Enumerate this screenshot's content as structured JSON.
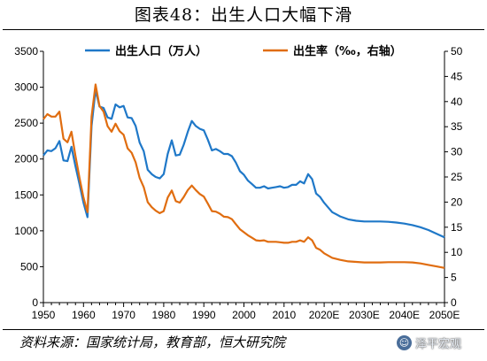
{
  "figure": {
    "title": "图表48：出生人口大幅下滑",
    "source": "资料来源：国家统计局，教育部，恒大研究院",
    "watermark": "泽平宏观"
  },
  "chart_data": {
    "type": "line",
    "x_ticks": [
      "1950",
      "1960",
      "1970",
      "1980",
      "1990",
      "2000",
      "2010",
      "2020E",
      "2030E",
      "2040E",
      "2050E"
    ],
    "y_left_ticks": [
      0,
      500,
      1000,
      1500,
      2000,
      2500,
      3000,
      3500
    ],
    "y_right_ticks": [
      0,
      5,
      10,
      15,
      20,
      25,
      30,
      35,
      40,
      45,
      50
    ],
    "y_left_range": [
      0,
      3500
    ],
    "y_right_range": [
      0,
      50
    ],
    "x_range": [
      1950,
      2050
    ],
    "grid": false,
    "legend_position": "top",
    "series": [
      {
        "name": "出生人口（万人）",
        "axis": "left",
        "color": "#1f78c8",
        "points": [
          [
            1950,
            2050
          ],
          [
            1951,
            2120
          ],
          [
            1952,
            2110
          ],
          [
            1953,
            2150
          ],
          [
            1954,
            2250
          ],
          [
            1955,
            1980
          ],
          [
            1956,
            1970
          ],
          [
            1957,
            2170
          ],
          [
            1958,
            1900
          ],
          [
            1959,
            1650
          ],
          [
            1960,
            1390
          ],
          [
            1961,
            1190
          ],
          [
            1962,
            2460
          ],
          [
            1963,
            2960
          ],
          [
            1964,
            2730
          ],
          [
            1965,
            2710
          ],
          [
            1966,
            2580
          ],
          [
            1967,
            2560
          ],
          [
            1968,
            2760
          ],
          [
            1969,
            2720
          ],
          [
            1970,
            2740
          ],
          [
            1971,
            2580
          ],
          [
            1972,
            2570
          ],
          [
            1973,
            2460
          ],
          [
            1974,
            2230
          ],
          [
            1975,
            2110
          ],
          [
            1976,
            1850
          ],
          [
            1977,
            1790
          ],
          [
            1978,
            1750
          ],
          [
            1979,
            1730
          ],
          [
            1980,
            1790
          ],
          [
            1981,
            2070
          ],
          [
            1982,
            2260
          ],
          [
            1983,
            2050
          ],
          [
            1984,
            2060
          ],
          [
            1985,
            2200
          ],
          [
            1986,
            2380
          ],
          [
            1987,
            2530
          ],
          [
            1988,
            2460
          ],
          [
            1989,
            2420
          ],
          [
            1990,
            2400
          ],
          [
            1991,
            2270
          ],
          [
            1992,
            2120
          ],
          [
            1993,
            2140
          ],
          [
            1994,
            2110
          ],
          [
            1995,
            2070
          ],
          [
            1996,
            2070
          ],
          [
            1997,
            2040
          ],
          [
            1998,
            1950
          ],
          [
            1999,
            1830
          ],
          [
            2000,
            1780
          ],
          [
            2001,
            1700
          ],
          [
            2002,
            1650
          ],
          [
            2003,
            1600
          ],
          [
            2004,
            1600
          ],
          [
            2005,
            1620
          ],
          [
            2006,
            1590
          ],
          [
            2007,
            1600
          ],
          [
            2008,
            1610
          ],
          [
            2009,
            1620
          ],
          [
            2010,
            1600
          ],
          [
            2011,
            1610
          ],
          [
            2012,
            1640
          ],
          [
            2013,
            1640
          ],
          [
            2014,
            1690
          ],
          [
            2015,
            1660
          ],
          [
            2016,
            1790
          ],
          [
            2017,
            1720
          ],
          [
            2018,
            1520
          ],
          [
            2019,
            1470
          ],
          [
            2020,
            1390
          ],
          [
            2022,
            1260
          ],
          [
            2024,
            1200
          ],
          [
            2026,
            1160
          ],
          [
            2028,
            1140
          ],
          [
            2030,
            1130
          ],
          [
            2032,
            1130
          ],
          [
            2034,
            1130
          ],
          [
            2036,
            1125
          ],
          [
            2038,
            1115
          ],
          [
            2040,
            1100
          ],
          [
            2042,
            1080
          ],
          [
            2044,
            1050
          ],
          [
            2046,
            1010
          ],
          [
            2048,
            960
          ],
          [
            2050,
            910
          ]
        ]
      },
      {
        "name": "出生率（‰，右轴）",
        "axis": "right",
        "color": "#e06d10",
        "points": [
          [
            1950,
            36.5
          ],
          [
            1951,
            37.5
          ],
          [
            1952,
            37.0
          ],
          [
            1953,
            37.0
          ],
          [
            1954,
            38.0
          ],
          [
            1955,
            32.6
          ],
          [
            1956,
            31.9
          ],
          [
            1957,
            34.0
          ],
          [
            1958,
            29.2
          ],
          [
            1959,
            24.8
          ],
          [
            1960,
            20.9
          ],
          [
            1961,
            18.0
          ],
          [
            1962,
            37.0
          ],
          [
            1963,
            43.4
          ],
          [
            1964,
            39.1
          ],
          [
            1965,
            38.0
          ],
          [
            1966,
            35.1
          ],
          [
            1967,
            34.0
          ],
          [
            1968,
            35.6
          ],
          [
            1969,
            34.1
          ],
          [
            1970,
            33.4
          ],
          [
            1971,
            30.7
          ],
          [
            1972,
            29.8
          ],
          [
            1973,
            27.9
          ],
          [
            1974,
            24.8
          ],
          [
            1975,
            23.0
          ],
          [
            1976,
            20.0
          ],
          [
            1977,
            19.0
          ],
          [
            1978,
            18.3
          ],
          [
            1979,
            17.8
          ],
          [
            1980,
            18.2
          ],
          [
            1981,
            20.9
          ],
          [
            1982,
            22.3
          ],
          [
            1983,
            20.2
          ],
          [
            1984,
            19.9
          ],
          [
            1985,
            21.0
          ],
          [
            1986,
            22.4
          ],
          [
            1987,
            23.3
          ],
          [
            1988,
            22.4
          ],
          [
            1989,
            21.6
          ],
          [
            1990,
            21.1
          ],
          [
            1991,
            19.7
          ],
          [
            1992,
            18.2
          ],
          [
            1993,
            18.1
          ],
          [
            1994,
            17.7
          ],
          [
            1995,
            17.1
          ],
          [
            1996,
            17.0
          ],
          [
            1997,
            16.6
          ],
          [
            1998,
            15.6
          ],
          [
            1999,
            14.6
          ],
          [
            2000,
            14.0
          ],
          [
            2001,
            13.4
          ],
          [
            2002,
            12.9
          ],
          [
            2003,
            12.4
          ],
          [
            2004,
            12.3
          ],
          [
            2005,
            12.4
          ],
          [
            2006,
            12.1
          ],
          [
            2007,
            12.1
          ],
          [
            2008,
            12.1
          ],
          [
            2009,
            12.0
          ],
          [
            2010,
            11.9
          ],
          [
            2011,
            11.9
          ],
          [
            2012,
            12.1
          ],
          [
            2013,
            12.1
          ],
          [
            2014,
            12.4
          ],
          [
            2015,
            12.1
          ],
          [
            2016,
            13.0
          ],
          [
            2017,
            12.4
          ],
          [
            2018,
            10.9
          ],
          [
            2019,
            10.5
          ],
          [
            2020,
            9.8
          ],
          [
            2022,
            8.9
          ],
          [
            2024,
            8.5
          ],
          [
            2026,
            8.2
          ],
          [
            2028,
            8.1
          ],
          [
            2030,
            8.0
          ],
          [
            2032,
            8.0
          ],
          [
            2034,
            8.0
          ],
          [
            2036,
            8.05
          ],
          [
            2038,
            8.05
          ],
          [
            2040,
            8.05
          ],
          [
            2042,
            8.0
          ],
          [
            2044,
            7.8
          ],
          [
            2046,
            7.5
          ],
          [
            2048,
            7.2
          ],
          [
            2050,
            6.9
          ]
        ]
      }
    ]
  }
}
